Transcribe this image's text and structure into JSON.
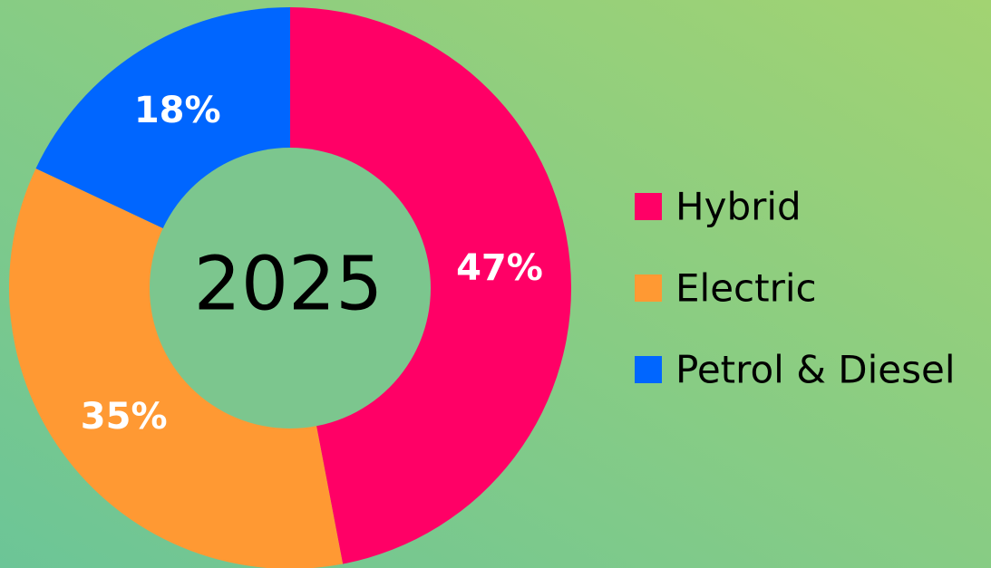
{
  "chart_data": {
    "type": "donut",
    "center_label": "2025",
    "categories": [
      "Hybrid",
      "Electric",
      "Petrol & Diesel"
    ],
    "values": [
      47,
      35,
      18
    ],
    "value_labels": [
      "47%",
      "35%",
      "18%"
    ],
    "colors": [
      "#ff0066",
      "#ff9933",
      "#0066ff"
    ],
    "legend": "right"
  }
}
